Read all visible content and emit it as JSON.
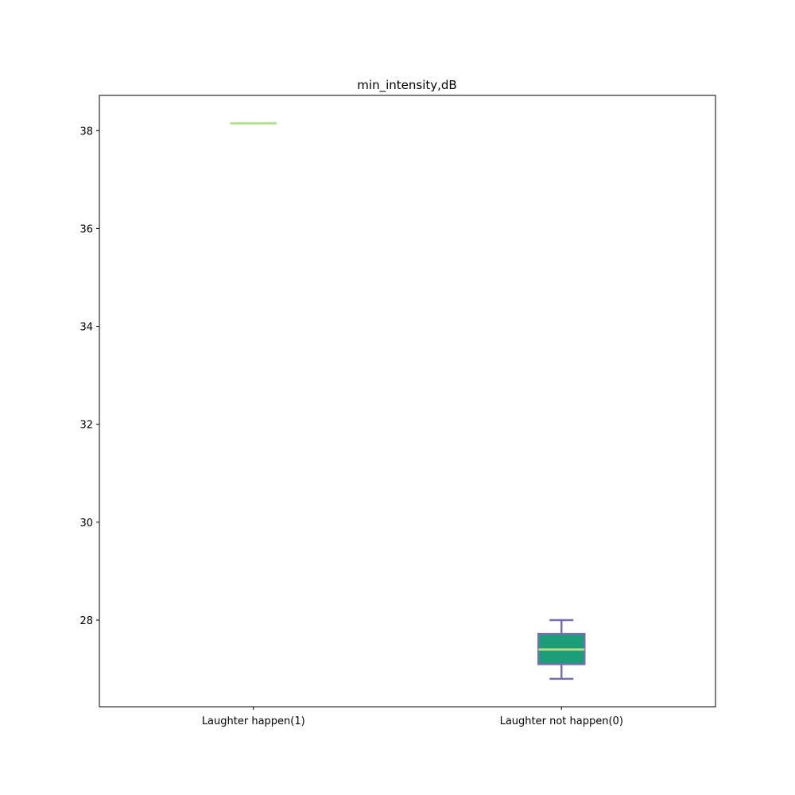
{
  "chart_data": {
    "type": "box",
    "title": "min_intensity,dB",
    "xlabel": "",
    "ylabel": "",
    "ylim": [
      26.23,
      38.72
    ],
    "yticks": [
      28,
      30,
      32,
      34,
      36,
      38
    ],
    "ytick_labels": [
      "28",
      "30",
      "32",
      "34",
      "36",
      "38"
    ],
    "grid": false,
    "categories": [
      "Laughter happen(1)",
      "Laughter not happen(0)"
    ],
    "boxes": [
      {
        "category": "Laughter happen(1)",
        "whislo": 38.15,
        "q1": 38.15,
        "med": 38.15,
        "q3": 38.15,
        "whishi": 38.15
      },
      {
        "category": "Laughter not happen(0)",
        "whislo": 26.8,
        "q1": 27.1,
        "med": 27.4,
        "q3": 27.72,
        "whishi": 28.0
      }
    ],
    "colors": {
      "box_fill": "#1b9e77",
      "box_edge": "#7570b3",
      "median": "#b2df8a",
      "axes": "#000000"
    }
  }
}
